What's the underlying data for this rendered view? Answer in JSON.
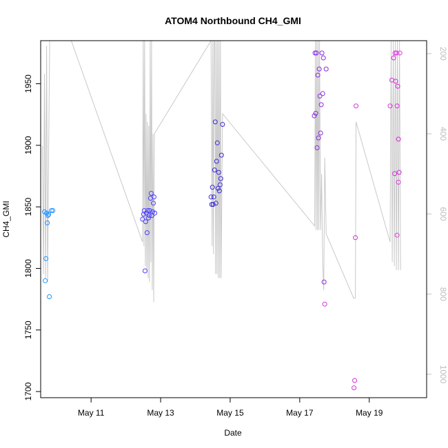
{
  "chart_data": {
    "type": "scatter",
    "title": "ATOM4 Northbound CH4_GMI",
    "xlabel": "Date",
    "ylabel": "CH4_GMI",
    "xlim": [
      9.55,
      20.65
    ],
    "ylim": [
      1695,
      1985
    ],
    "y_ticks": [
      1700,
      1750,
      1800,
      1850,
      1900,
      1950
    ],
    "x_ticks": [
      {
        "value": 11,
        "label": "May 11"
      },
      {
        "value": 13,
        "label": "May 13"
      },
      {
        "value": 15,
        "label": "May 15"
      },
      {
        "value": 17,
        "label": "May 17"
      },
      {
        "value": 19,
        "label": "May 19"
      }
    ],
    "secondary_axis": {
      "side": "right",
      "ticks": [
        200,
        400,
        600,
        800,
        1000
      ],
      "lim": [
        1058.4,
        167.6
      ],
      "color": "#bdbdbd"
    },
    "secondary_line": {
      "color": "#c8c8c8",
      "x": [
        9.6,
        9.63,
        9.66,
        9.69,
        9.72,
        9.75,
        9.78,
        9.81,
        9.85,
        9.9,
        9.95,
        10.43,
        12.48,
        12.5,
        12.52,
        12.54,
        12.56,
        12.58,
        12.6,
        12.62,
        12.64,
        12.66,
        12.68,
        12.7,
        12.72,
        12.74,
        12.76,
        12.78,
        12.8,
        12.82,
        14.45,
        14.48,
        14.5,
        14.52,
        14.54,
        14.56,
        14.58,
        14.6,
        14.62,
        14.64,
        14.66,
        14.68,
        14.7,
        14.72,
        14.74,
        14.78,
        17.43,
        17.45,
        17.47,
        17.49,
        17.51,
        17.53,
        17.55,
        17.57,
        17.6,
        17.63,
        17.66,
        17.69,
        17.72,
        17.76,
        18.55,
        18.6,
        18.62,
        19.6,
        19.63,
        19.66,
        19.69,
        19.72,
        19.75,
        19.78,
        19.81,
        19.84,
        19.87,
        19.9
      ],
      "y": [
        430,
        750,
        250,
        760,
        180,
        770,
        440,
        150,
        150,
        150,
        150,
        150,
        670,
        150,
        680,
        150,
        730,
        350,
        740,
        370,
        760,
        380,
        770,
        150,
        720,
        150,
        790,
        400,
        820,
        400,
        150,
        680,
        150,
        700,
        150,
        150,
        750,
        150,
        750,
        150,
        760,
        150,
        760,
        150,
        760,
        350,
        630,
        150,
        640,
        150,
        640,
        150,
        640,
        150,
        640,
        500,
        720,
        790,
        460,
        650,
        810,
        810,
        370,
        670,
        150,
        720,
        150,
        730,
        150,
        740,
        150,
        740,
        150,
        740
      ]
    },
    "series": [
      {
        "color": "#1e90ff",
        "x": [
          9.66,
          9.68,
          9.7,
          9.72,
          9.74,
          9.76,
          9.78,
          9.8,
          9.86,
          9.9
        ],
        "y": [
          1846,
          1790,
          1808,
          1845,
          1837,
          1843,
          1844,
          1777,
          1847,
          1847
        ]
      },
      {
        "color": "#4a3dff",
        "x": [
          12.48,
          12.51,
          12.53,
          12.55,
          12.57,
          12.59,
          12.61,
          12.63,
          12.65,
          12.67,
          12.69,
          12.71,
          12.73,
          12.75,
          12.77,
          12.79,
          12.81,
          12.83
        ],
        "y": [
          1840,
          1844,
          1847,
          1798,
          1838,
          1845,
          1829,
          1847,
          1841,
          1843,
          1847,
          1857,
          1861,
          1843,
          1846,
          1853,
          1858,
          1845
        ]
      },
      {
        "color": "#3b2bd9",
        "x": [
          14.45,
          14.47,
          14.49,
          14.51,
          14.53,
          14.55,
          14.57,
          14.59,
          14.61,
          14.63,
          14.65,
          14.67,
          14.69,
          14.71,
          14.73,
          14.75,
          14.78
        ],
        "y": [
          1858,
          1852,
          1866,
          1852,
          1858,
          1880,
          1919,
          1853,
          1887,
          1902,
          1865,
          1878,
          1863,
          1868,
          1873,
          1892,
          1917
        ]
      },
      {
        "color": "#8a2be2",
        "x": [
          17.42,
          17.44,
          17.46,
          17.48,
          17.5,
          17.52,
          17.54,
          17.56,
          17.58,
          17.6,
          17.62,
          17.64,
          17.66,
          17.68,
          17.7,
          17.76
        ],
        "y": [
          1924,
          1975,
          1926,
          1975,
          1898,
          1957,
          1906,
          1962,
          1940,
          1910,
          1933,
          1975,
          1942,
          1971,
          1789,
          1962
        ]
      },
      {
        "color": "#d52cd6",
        "x": [
          17.72,
          18.56,
          18.58,
          18.6,
          18.62,
          19.6,
          19.65,
          19.7,
          19.73,
          19.76,
          19.78,
          19.8,
          19.82,
          19.84,
          19.86
        ],
        "y": [
          1771,
          1703,
          1709,
          1825,
          1932,
          1932,
          1953,
          1971,
          1877,
          1952,
          1975,
          1932,
          1948,
          1905,
          1878
        ]
      },
      {
        "color": "#e23de0",
        "x": [
          19.74,
          19.8,
          19.84,
          19.88
        ],
        "y": [
          1975,
          1827,
          1870,
          1975
        ]
      }
    ]
  }
}
